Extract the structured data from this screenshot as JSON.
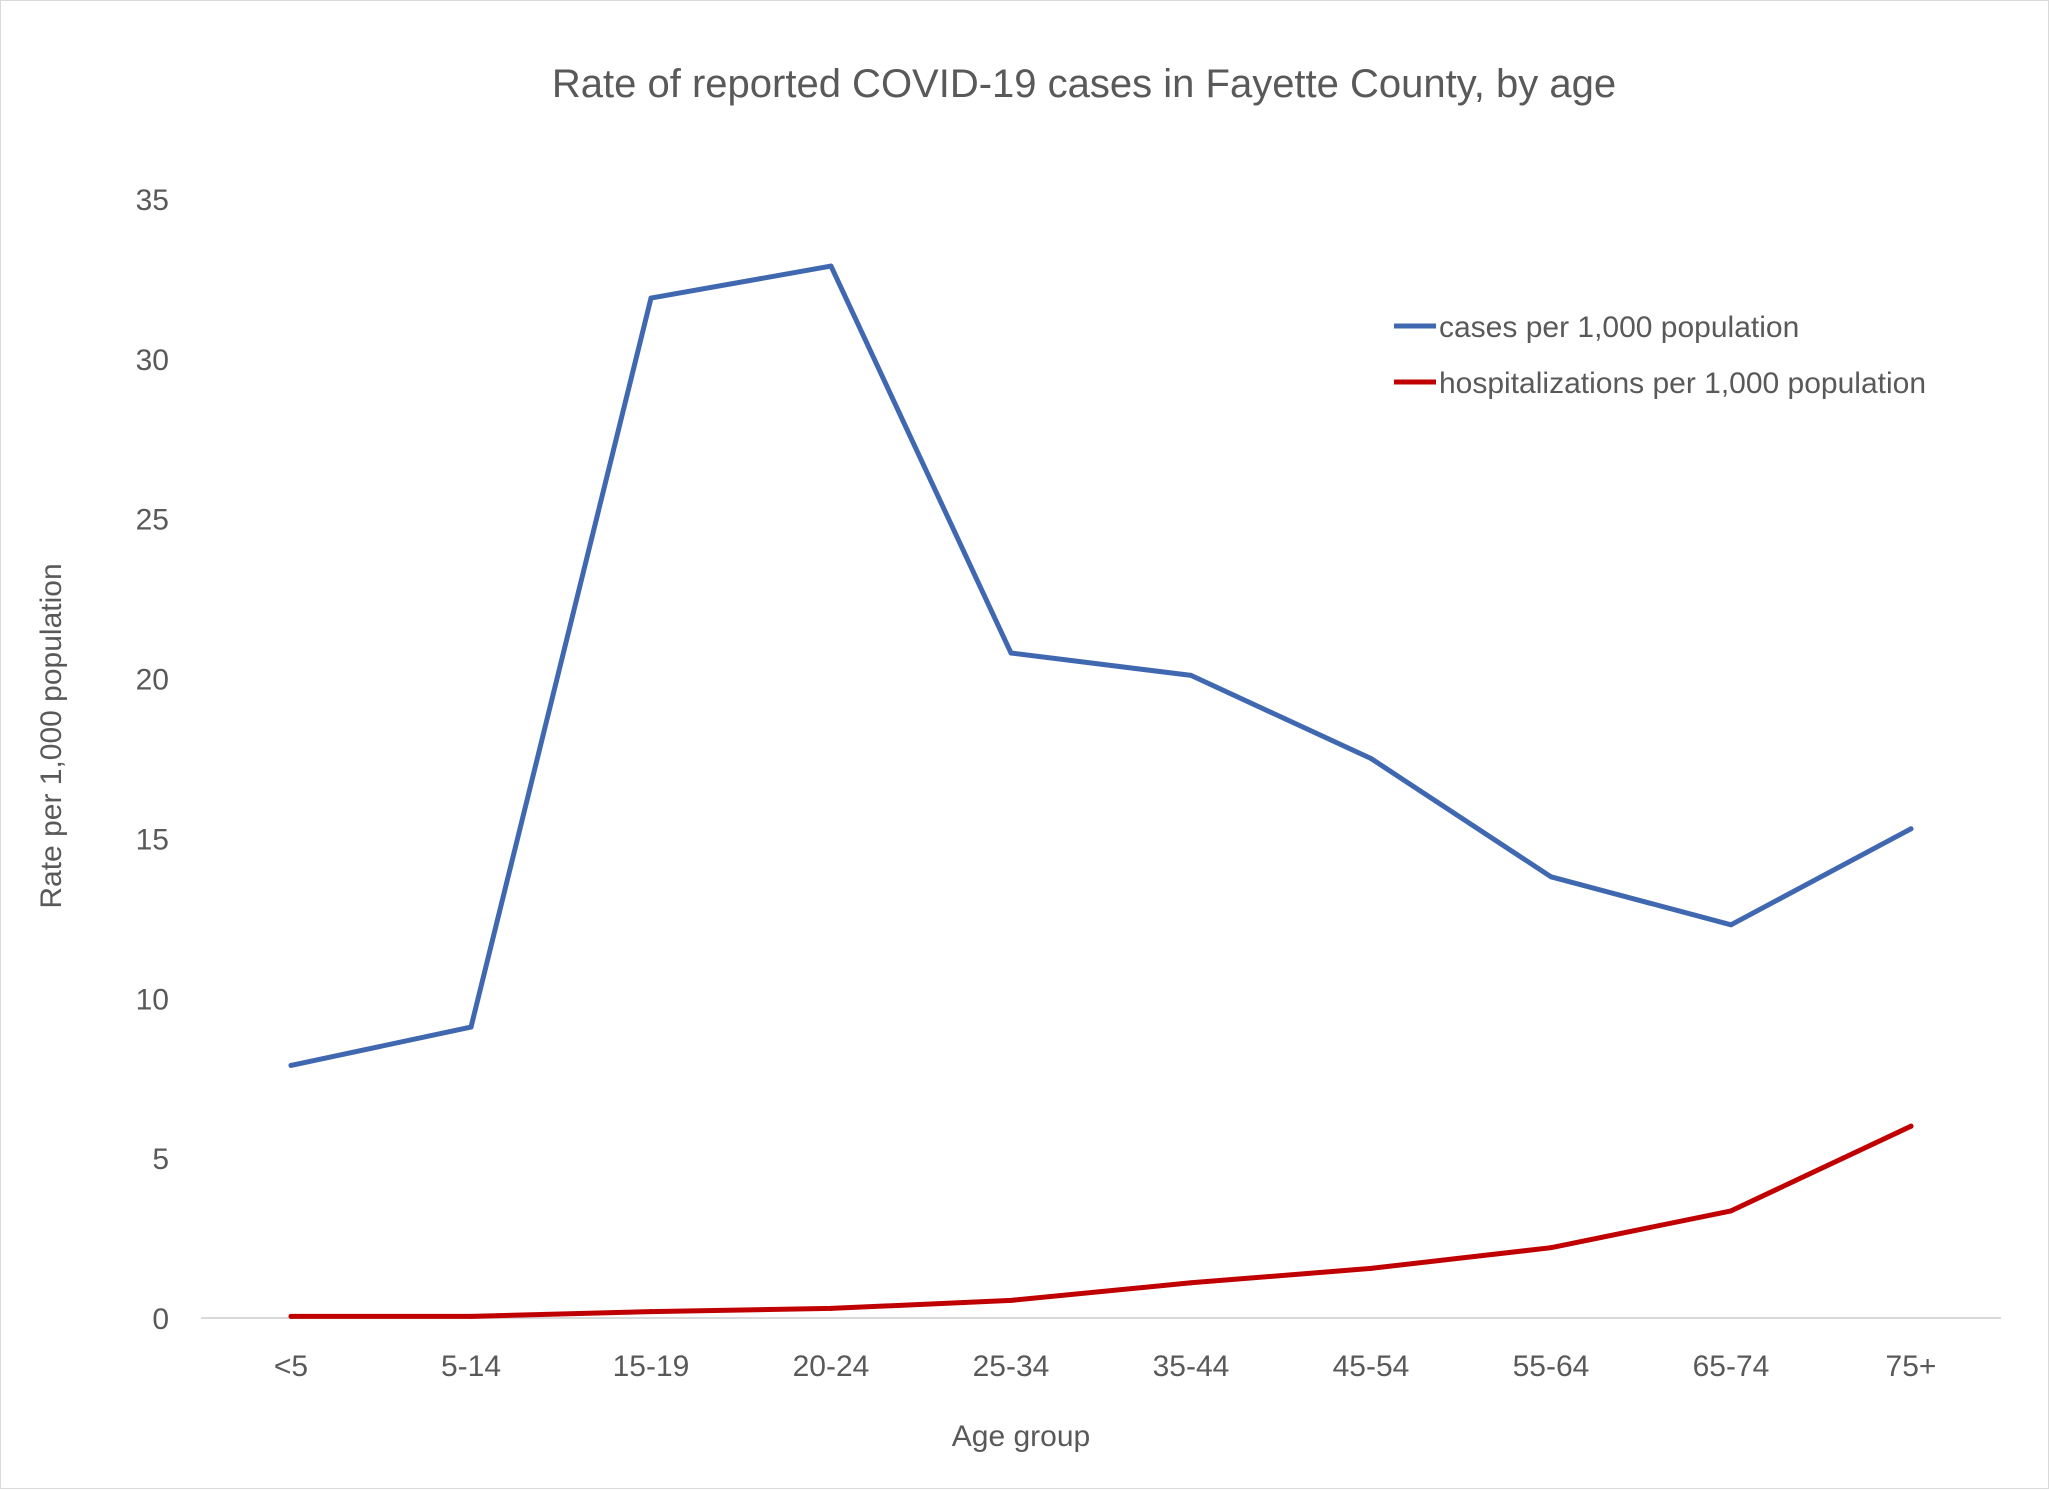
{
  "chart_data": {
    "type": "line",
    "title": "Rate of reported COVID-19 cases in Fayette County, by age",
    "xlabel": "Age group",
    "ylabel": "Rate per 1,000 population",
    "categories": [
      "<5",
      "5-14",
      "15-19",
      "20-24",
      "25-34",
      "35-44",
      "45-54",
      "55-64",
      "65-74",
      "75+"
    ],
    "ylim": [
      0,
      35
    ],
    "yticks": [
      "0",
      "5",
      "10",
      "15",
      "20",
      "25",
      "30",
      "35"
    ],
    "grid": false,
    "legend_position": "top-right",
    "series": [
      {
        "name": "cases per 1,000 population",
        "color": "#4068b0",
        "values": [
          7.9,
          9.1,
          31.9,
          32.9,
          20.8,
          20.1,
          17.5,
          13.8,
          12.3,
          15.3
        ]
      },
      {
        "name": "hospitalizations per 1,000 population",
        "color": "#c00000",
        "values": [
          0.05,
          0.05,
          0.2,
          0.3,
          0.55,
          1.1,
          1.55,
          2.2,
          3.35,
          6.0
        ]
      }
    ]
  }
}
